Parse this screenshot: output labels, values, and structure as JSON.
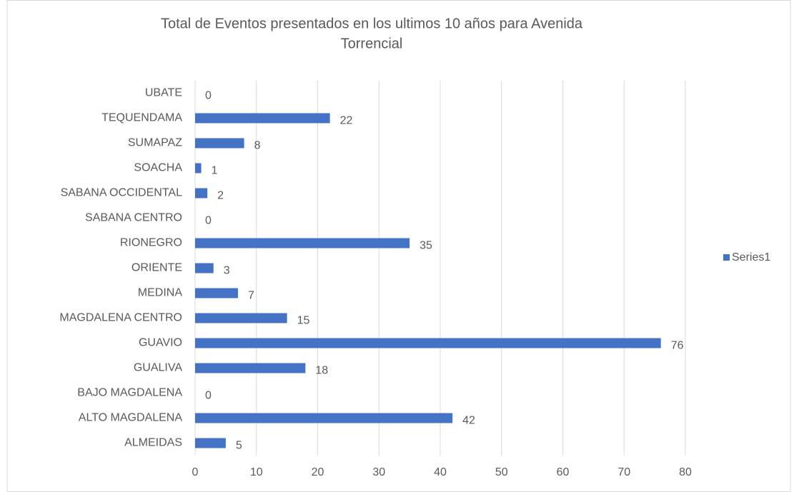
{
  "chart_data": {
    "type": "bar",
    "orientation": "horizontal",
    "title": [
      "Total de Eventos presentados en los ultimos 10 años para Avenida",
      "Torrencial"
    ],
    "categories": [
      "ALMEIDAS",
      "ALTO MAGDALENA",
      "BAJO MAGDALENA",
      "GUALIVA",
      "GUAVIO",
      "MAGDALENA CENTRO",
      "MEDINA",
      "ORIENTE",
      "RIONEGRO",
      "SABANA CENTRO",
      "SABANA OCCIDENTAL",
      "SOACHA",
      "SUMAPAZ",
      "TEQUENDAMA",
      "UBATE"
    ],
    "series": [
      {
        "name": "Series1",
        "color": "#4472c4",
        "values": [
          5,
          42,
          0,
          18,
          76,
          15,
          7,
          3,
          35,
          0,
          2,
          1,
          8,
          22,
          0
        ]
      }
    ],
    "xlim": [
      0,
      80
    ],
    "xticks": [
      0,
      10,
      20,
      30,
      40,
      50,
      60,
      70,
      80
    ],
    "grid": true,
    "legend": "right"
  }
}
